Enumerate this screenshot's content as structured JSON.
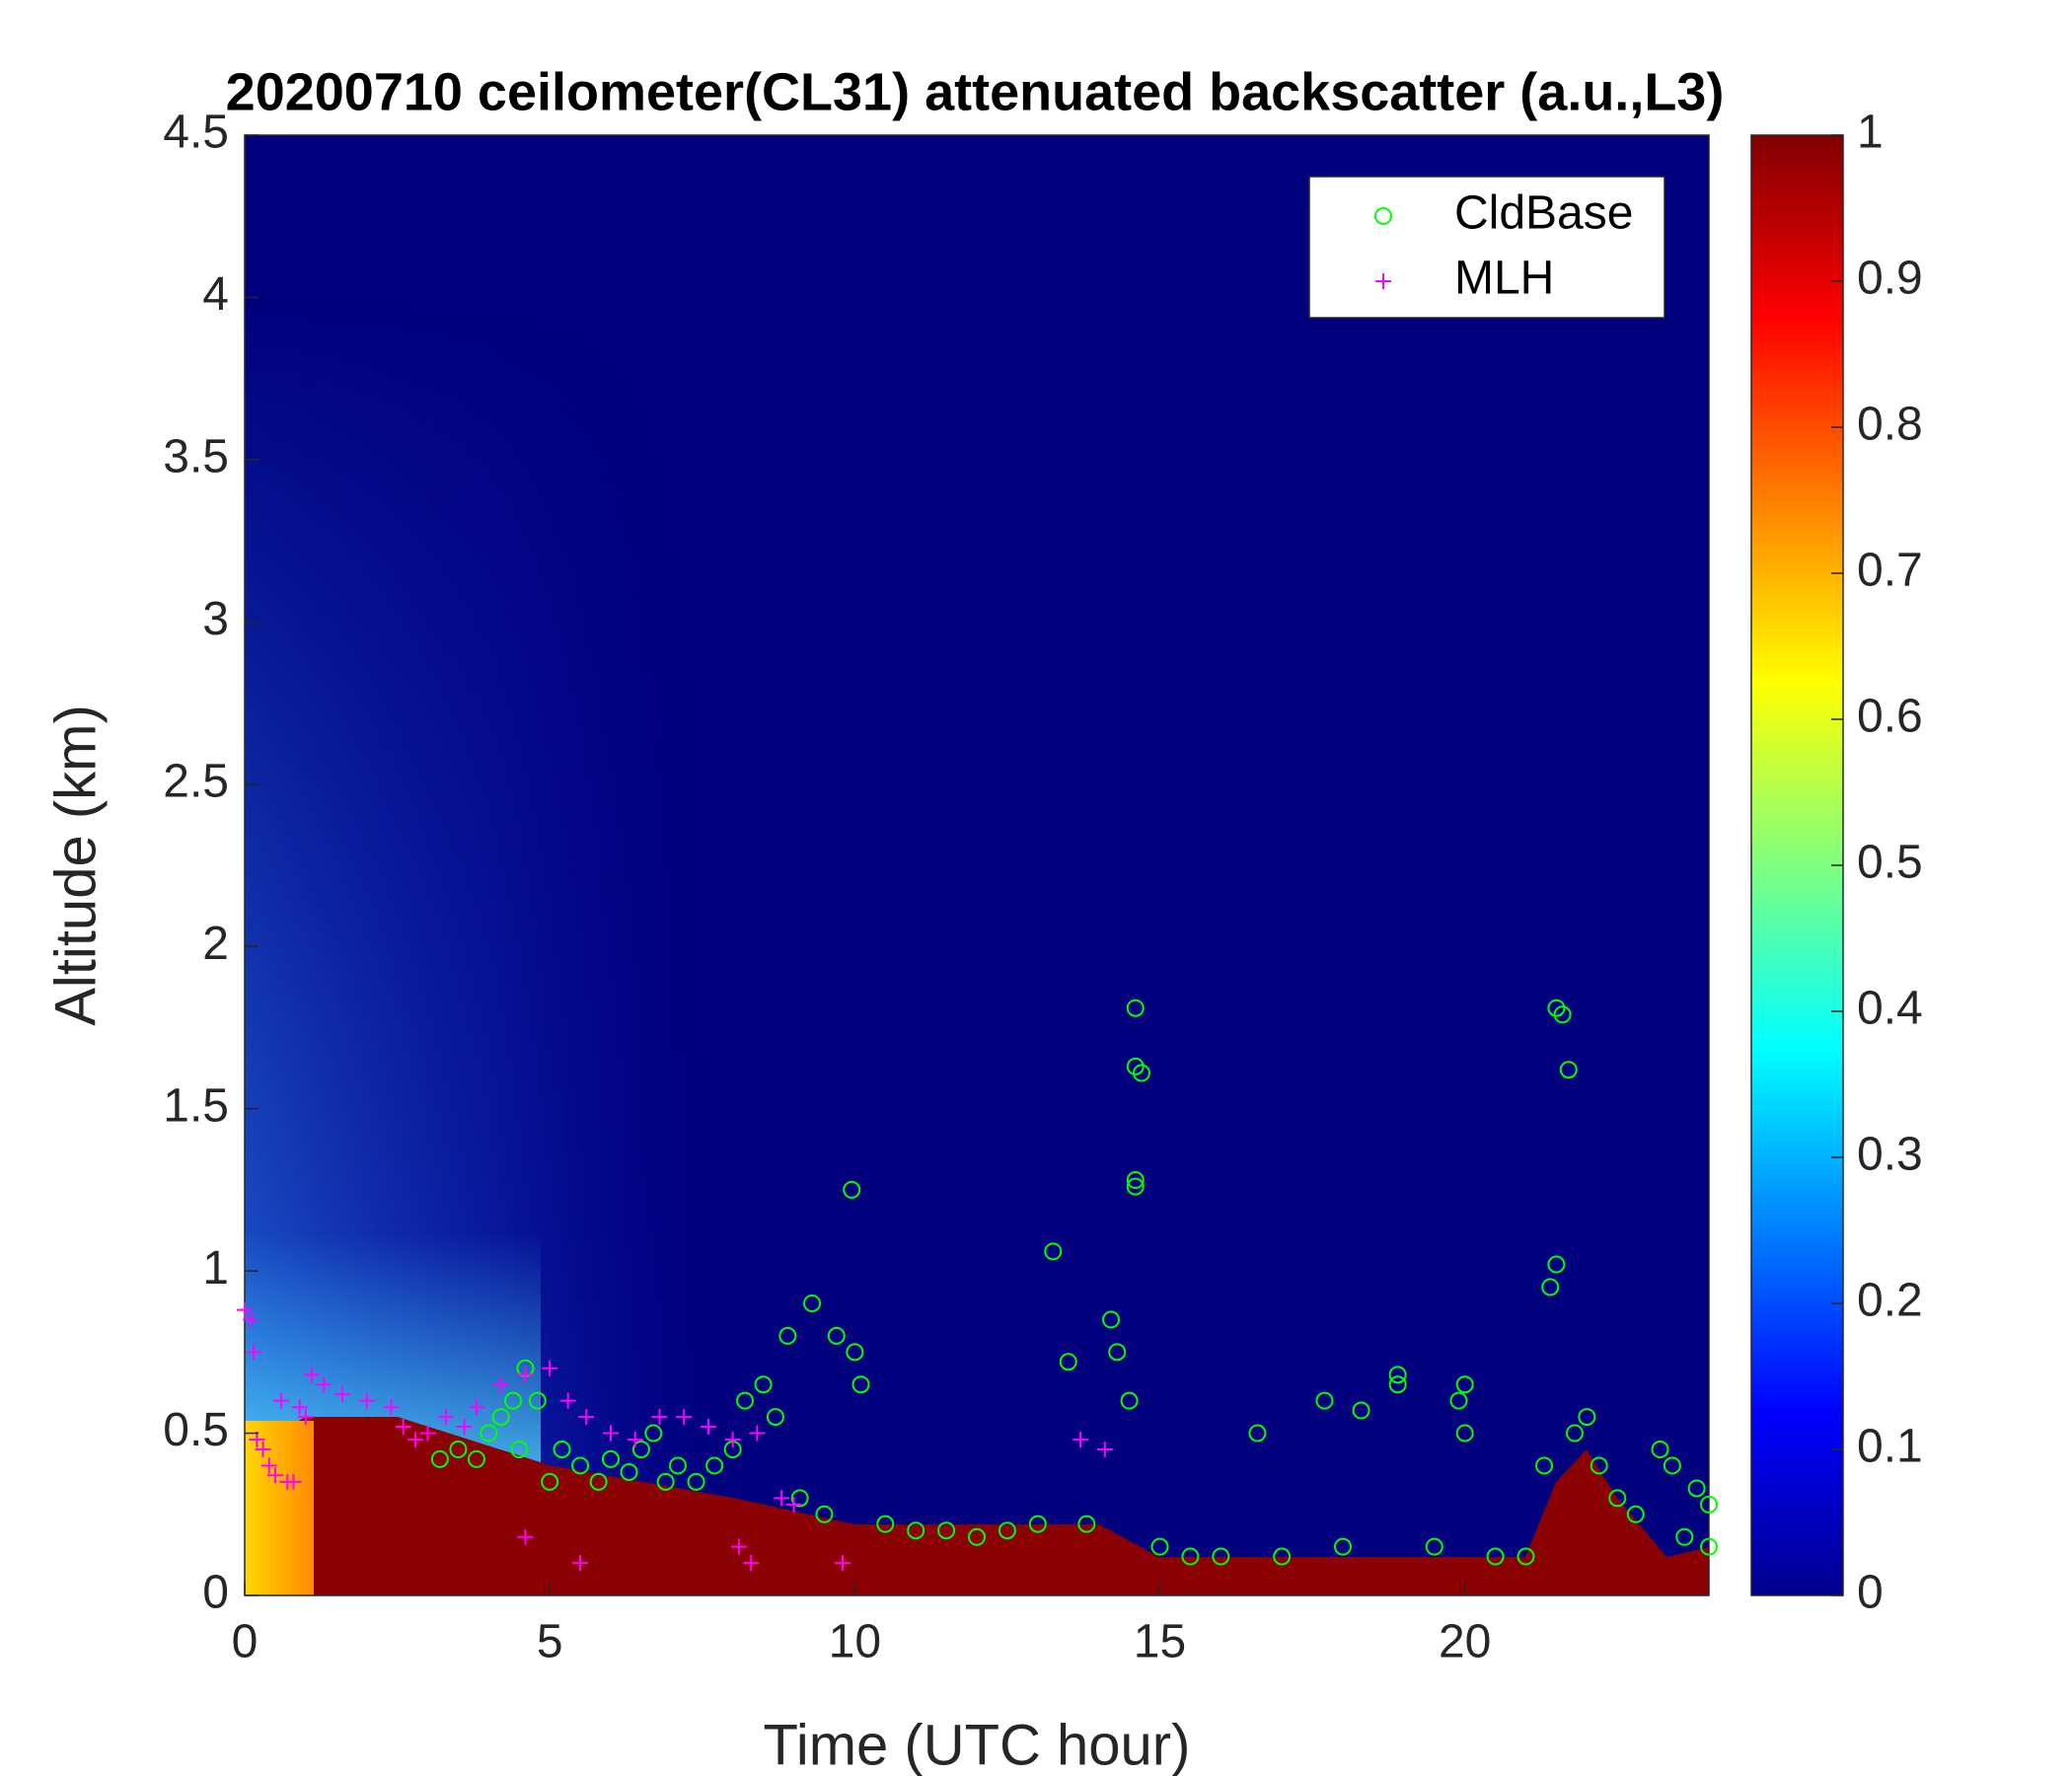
{
  "chart_data": {
    "type": "scatter",
    "title": "20200710 ceilometer(CL31) attenuated backscatter (a.u.,L3)",
    "x_label": "Time (UTC hour)",
    "y_label": "Altitude (km)",
    "xlim": [
      0,
      24
    ],
    "xticks": [
      0,
      5,
      10,
      15,
      20
    ],
    "ylim": [
      0,
      4.5
    ],
    "yticks": [
      0,
      0.5,
      1,
      1.5,
      2,
      2.5,
      3,
      3.5,
      4,
      4.5
    ],
    "legend": "upper right",
    "colorbar": {
      "colormap": "jet",
      "lim": [
        0,
        1
      ],
      "ticks": [
        0,
        0.1,
        0.2,
        0.3,
        0.4,
        0.5,
        0.6,
        0.7,
        0.8,
        0.9,
        1
      ]
    },
    "series": [
      {
        "name": "CldBase",
        "color": "#00ff00",
        "marker": "o",
        "x": [
          3.2,
          3.5,
          3.8,
          4.0,
          4.2,
          4.4,
          4.5,
          4.6,
          4.8,
          5.0,
          5.2,
          5.5,
          5.8,
          6.0,
          6.3,
          6.5,
          6.7,
          6.9,
          7.1,
          7.4,
          7.7,
          8.0,
          8.2,
          8.5,
          8.7,
          8.9,
          9.1,
          9.3,
          9.5,
          9.7,
          9.95,
          10.0,
          10.1,
          10.5,
          11,
          11.5,
          12,
          12.5,
          13,
          13.25,
          13.5,
          13.8,
          14.2,
          14.3,
          14.5,
          14.6,
          14.6,
          14.7,
          14.6,
          14.6,
          15,
          15.5,
          16,
          16.6,
          17,
          17.7,
          18,
          18.3,
          18.9,
          18.9,
          19.5,
          19.9,
          20,
          20.0,
          20.5,
          21.0,
          21.3,
          21.4,
          21.5,
          21.5,
          21.6,
          21.7,
          21.8,
          22,
          22.2,
          22.5,
          22.8,
          23.2,
          23.4,
          23.6,
          23.8,
          24,
          24
        ],
        "values": [
          0.42,
          0.45,
          0.42,
          0.5,
          0.55,
          0.6,
          0.45,
          0.7,
          0.6,
          0.35,
          0.45,
          0.4,
          0.35,
          0.42,
          0.38,
          0.45,
          0.5,
          0.35,
          0.4,
          0.35,
          0.4,
          0.45,
          0.6,
          0.65,
          0.55,
          0.8,
          0.3,
          0.9,
          0.25,
          0.8,
          1.25,
          0.75,
          0.65,
          0.22,
          0.2,
          0.2,
          0.18,
          0.2,
          0.22,
          1.06,
          0.72,
          0.22,
          0.85,
          0.75,
          0.6,
          1.81,
          1.63,
          1.61,
          1.28,
          1.26,
          0.15,
          0.12,
          0.12,
          0.5,
          0.12,
          0.6,
          0.15,
          0.57,
          0.68,
          0.65,
          0.15,
          0.6,
          0.65,
          0.5,
          0.12,
          0.12,
          0.4,
          0.95,
          1.02,
          1.81,
          1.79,
          1.62,
          0.5,
          0.55,
          0.4,
          0.3,
          0.25,
          0.45,
          0.4,
          0.18,
          0.33,
          0.28,
          0.15
        ]
      },
      {
        "name": "MLH",
        "color": "#ff00ff",
        "marker": "+",
        "x": [
          0,
          0.1,
          0.15,
          0.2,
          0.3,
          0.4,
          0.5,
          0.7,
          0.8,
          0.6,
          0.9,
          1,
          1.1,
          1.3,
          1.6,
          2,
          2.4,
          2.6,
          2.8,
          3,
          3.3,
          3.6,
          3.8,
          4.2,
          4.6,
          5,
          5.3,
          5.6,
          6,
          6.4,
          6.8,
          7.2,
          7.6,
          8,
          8.4,
          8.8,
          9.0,
          4.6,
          5.5,
          8.1,
          8.3,
          9.8,
          13.7,
          14.1
        ],
        "values": [
          0.88,
          0.85,
          0.75,
          0.48,
          0.45,
          0.4,
          0.37,
          0.35,
          0.35,
          0.6,
          0.58,
          0.55,
          0.68,
          0.65,
          0.62,
          0.6,
          0.58,
          0.52,
          0.48,
          0.5,
          0.55,
          0.52,
          0.58,
          0.65,
          0.68,
          0.7,
          0.6,
          0.55,
          0.5,
          0.48,
          0.55,
          0.55,
          0.52,
          0.48,
          0.5,
          0.3,
          0.28,
          0.18,
          0.1,
          0.15,
          0.1,
          0.1,
          0.48,
          0.45
        ]
      }
    ]
  }
}
